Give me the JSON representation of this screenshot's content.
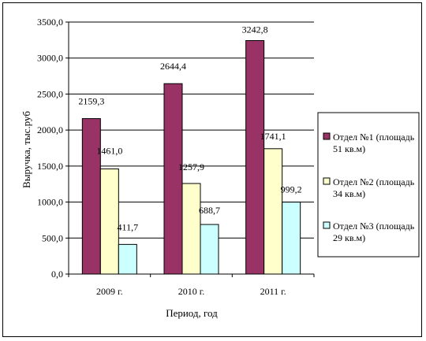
{
  "chart_data": {
    "type": "bar",
    "categories": [
      "2009 г.",
      "2010 г.",
      "2011 г."
    ],
    "series": [
      {
        "name": "Отдел №1 (площадь 51 кв.м)",
        "values": [
          2159.3,
          2644.4,
          3242.8
        ],
        "labels": [
          "2159,3",
          "2644,4",
          "3242,8"
        ],
        "color": "#993366"
      },
      {
        "name": "Отдел №2 (площадь 34 кв.м)",
        "values": [
          1461.0,
          1257.9,
          1741.1
        ],
        "labels": [
          "1461,0",
          "1257,9",
          "1741,1"
        ],
        "color": "#ffffcc"
      },
      {
        "name": "Отдел №3 (площадь 29 кв.м)",
        "values": [
          411.7,
          688.7,
          999.2
        ],
        "labels": [
          "411,7",
          "688,7",
          "999,2"
        ],
        "color": "#ccffff"
      }
    ],
    "legend_lines": [
      [
        "Отдел №1 (площадь",
        "51 кв.м)"
      ],
      [
        "Отдел №2 (площадь",
        "34 кв.м)"
      ],
      [
        "Отдел №3 (площадь",
        "29 кв.м)"
      ]
    ],
    "yticks": [
      0,
      500,
      1000,
      1500,
      2000,
      2500,
      3000,
      3500
    ],
    "ytick_labels": [
      "0,0",
      "500,0",
      "1000,0",
      "1500,0",
      "2000,0",
      "2500,0",
      "3000,0",
      "3500,0"
    ],
    "ylim": [
      0,
      3500
    ],
    "xlabel": "Период, год",
    "ylabel": "Выручка, тыс.руб",
    "plot_background": "#ffffff",
    "grid": true,
    "legend_position": "right"
  }
}
